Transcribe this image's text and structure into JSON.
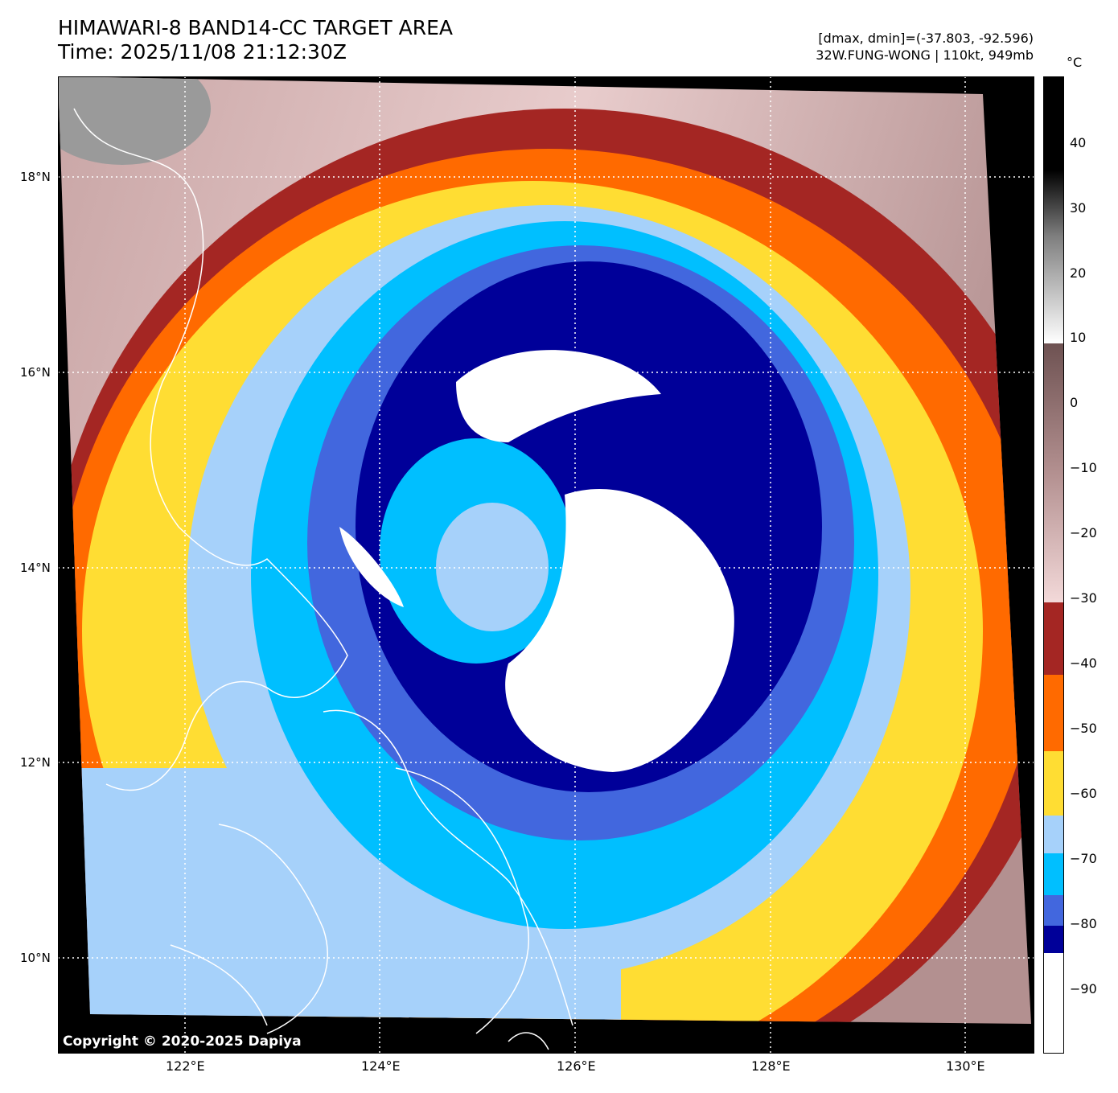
{
  "title": {
    "line1": "HIMAWARI-8 BAND14-CC TARGET AREA",
    "line2": "Time: 2025/11/08 21:12:30Z"
  },
  "info": {
    "dmax_dmin": "[dmax, dmin]=(-37.803, -92.596)",
    "storm": "32W.FUNG-WONG | 110kt, 949mb"
  },
  "copyright": "Copyright © 2020-2025 Dapiya",
  "axes": {
    "x_ticks": [
      "122°E",
      "124°E",
      "126°E",
      "128°E",
      "130°E"
    ],
    "y_ticks": [
      "18°N",
      "16°N",
      "14°N",
      "12°N",
      "10°N"
    ]
  },
  "colorbar": {
    "unit": "°C",
    "ticks": [
      "40",
      "30",
      "20",
      "10",
      "0",
      "−10",
      "−20",
      "−30",
      "−40",
      "−50",
      "−60",
      "−70",
      "−80",
      "−90"
    ],
    "bands": [
      {
        "range": "-30 to -40",
        "color": "#a42623"
      },
      {
        "range": "-40 to -50",
        "color": "#ff6a00"
      },
      {
        "range": "-50 to -60",
        "color": "#ffdd33"
      },
      {
        "range": "-60 to -70",
        "color": "#a6d1fa"
      },
      {
        "range": "-70 to -80",
        "color": "#00bfff"
      },
      {
        "range": "-80 to -85",
        "color": "#4267de"
      },
      {
        "range": "-85 to -90",
        "color": "#000099"
      },
      {
        "range": "below -90",
        "color": "#ffffff"
      }
    ],
    "warm_gradient": [
      "#f3d9d9",
      "#d9b5b5",
      "#a88383",
      "#6e5252",
      "#ffffff",
      "#7f7f7f",
      "#000000"
    ]
  }
}
